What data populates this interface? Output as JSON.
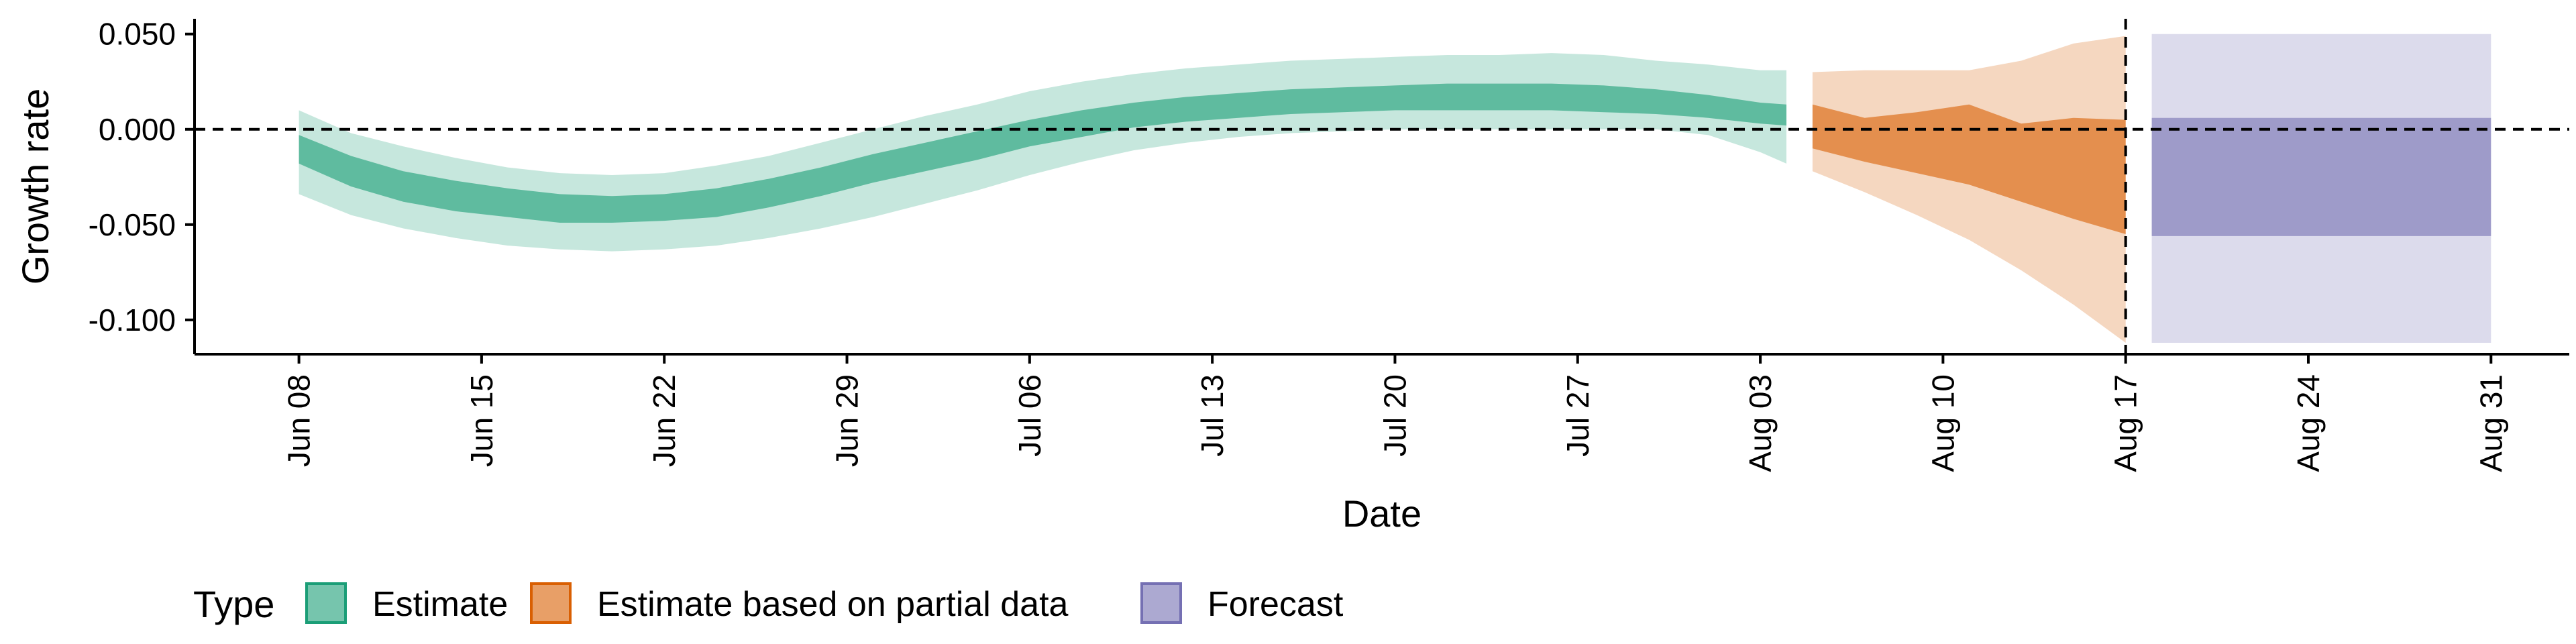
{
  "chart_data": {
    "type": "area",
    "xlabel": "Date",
    "ylabel": "Growth rate",
    "y_ticks": [
      0.05,
      0.0,
      -0.05,
      -0.1
    ],
    "y_tick_labels": [
      "0.050",
      "0.000",
      "-0.050",
      "-0.100"
    ],
    "ylim": [
      -0.118,
      0.058
    ],
    "x_ticks": [
      "2020-06-08",
      "2020-06-15",
      "2020-06-22",
      "2020-06-29",
      "2020-07-06",
      "2020-07-13",
      "2020-07-20",
      "2020-07-27",
      "2020-08-03",
      "2020-08-10",
      "2020-08-17",
      "2020-08-24",
      "2020-08-31"
    ],
    "x_tick_labels": [
      "Jun 08",
      "Jun 15",
      "Jun 22",
      "Jun 29",
      "Jul 06",
      "Jul 13",
      "Jul 20",
      "Jul 27",
      "Aug 03",
      "Aug 10",
      "Aug 17",
      "Aug 24",
      "Aug 31"
    ],
    "xlim": [
      "2020-06-04",
      "2020-09-03"
    ],
    "hline_y": 0.0,
    "vline_x": "2020-08-17",
    "legend": {
      "title": "Type",
      "placement": "bottom",
      "items": [
        "Estimate",
        "Estimate based on partial data",
        "Forecast"
      ]
    },
    "series": [
      {
        "name": "Estimate",
        "color": "#1b9e77",
        "outer_opacity": 0.25,
        "inner_opacity": 0.6,
        "x": [
          "2020-06-08",
          "2020-06-10",
          "2020-06-12",
          "2020-06-14",
          "2020-06-16",
          "2020-06-18",
          "2020-06-20",
          "2020-06-22",
          "2020-06-24",
          "2020-06-26",
          "2020-06-28",
          "2020-06-30",
          "2020-07-02",
          "2020-07-04",
          "2020-07-06",
          "2020-07-08",
          "2020-07-10",
          "2020-07-12",
          "2020-07-14",
          "2020-07-16",
          "2020-07-18",
          "2020-07-20",
          "2020-07-22",
          "2020-07-24",
          "2020-07-26",
          "2020-07-28",
          "2020-07-30",
          "2020-08-01",
          "2020-08-03",
          "2020-08-04"
        ],
        "lower_90": [
          -0.034,
          -0.045,
          -0.052,
          -0.057,
          -0.061,
          -0.063,
          -0.064,
          -0.063,
          -0.061,
          -0.057,
          -0.052,
          -0.046,
          -0.039,
          -0.032,
          -0.024,
          -0.017,
          -0.011,
          -0.007,
          -0.004,
          -0.002,
          -0.001,
          0.0,
          0.0,
          0.0,
          0.0,
          0.0,
          0.0,
          -0.003,
          -0.012,
          -0.018
        ],
        "lower_50": [
          -0.018,
          -0.03,
          -0.038,
          -0.043,
          -0.046,
          -0.049,
          -0.049,
          -0.048,
          -0.046,
          -0.041,
          -0.035,
          -0.028,
          -0.022,
          -0.016,
          -0.009,
          -0.004,
          0.001,
          0.004,
          0.006,
          0.008,
          0.009,
          0.01,
          0.01,
          0.01,
          0.01,
          0.009,
          0.008,
          0.006,
          0.003,
          0.002
        ],
        "upper_50": [
          -0.003,
          -0.014,
          -0.022,
          -0.027,
          -0.031,
          -0.034,
          -0.035,
          -0.034,
          -0.031,
          -0.026,
          -0.02,
          -0.013,
          -0.007,
          -0.001,
          0.005,
          0.01,
          0.014,
          0.017,
          0.019,
          0.021,
          0.022,
          0.023,
          0.024,
          0.024,
          0.024,
          0.023,
          0.021,
          0.018,
          0.014,
          0.013
        ],
        "upper_90": [
          0.01,
          -0.002,
          -0.009,
          -0.015,
          -0.02,
          -0.023,
          -0.024,
          -0.023,
          -0.019,
          -0.014,
          -0.007,
          0.0,
          0.007,
          0.013,
          0.02,
          0.025,
          0.029,
          0.032,
          0.034,
          0.036,
          0.037,
          0.038,
          0.039,
          0.039,
          0.04,
          0.039,
          0.036,
          0.034,
          0.031,
          0.031
        ]
      },
      {
        "name": "Estimate based on partial data",
        "color": "#d95f02",
        "outer_opacity": 0.25,
        "inner_opacity": 0.6,
        "x": [
          "2020-08-05",
          "2020-08-07",
          "2020-08-09",
          "2020-08-11",
          "2020-08-13",
          "2020-08-15",
          "2020-08-17"
        ],
        "lower_90": [
          -0.022,
          -0.033,
          -0.045,
          -0.058,
          -0.074,
          -0.092,
          -0.112
        ],
        "lower_50": [
          -0.01,
          -0.017,
          -0.023,
          -0.029,
          -0.038,
          -0.047,
          -0.055
        ],
        "upper_50": [
          0.013,
          0.006,
          0.009,
          0.013,
          0.003,
          0.006,
          0.005
        ],
        "upper_90": [
          0.03,
          0.031,
          0.031,
          0.031,
          0.036,
          0.045,
          0.049
        ]
      },
      {
        "name": "Forecast",
        "color": "#7570b3",
        "outer_opacity": 0.25,
        "inner_opacity": 0.6,
        "x": [
          "2020-08-18",
          "2020-08-31"
        ],
        "lower_90": [
          -0.112,
          -0.112
        ],
        "lower_50": [
          -0.056,
          -0.056
        ],
        "upper_50": [
          0.006,
          0.006
        ],
        "upper_90": [
          0.05,
          0.05
        ]
      }
    ]
  }
}
